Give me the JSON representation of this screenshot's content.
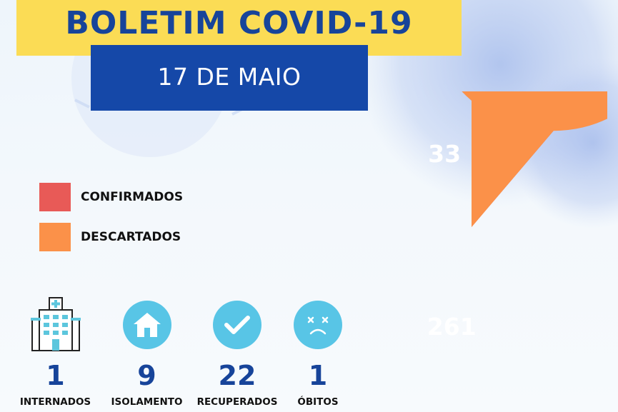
{
  "header": {
    "title": "BOLETIM COVID-19",
    "date": "17 DE MAIO"
  },
  "colors": {
    "title_band": "#fbdc55",
    "title_text": "#17449a",
    "date_band": "#1548a8",
    "confirmados": "#e85a57",
    "descartados": "#fb9149",
    "icon_circle": "#58c5e6"
  },
  "chart_data": {
    "type": "pie",
    "slices": [
      {
        "label": "CONFIRMADOS",
        "value": 33,
        "color": "#e85a57"
      },
      {
        "label": "DESCARTADOS",
        "value": 261,
        "color": "#fb9149"
      }
    ],
    "legend_position": "left"
  },
  "stats": [
    {
      "value": "1",
      "label": "INTERNADOS",
      "icon": "hospital-icon"
    },
    {
      "value": "9",
      "label": "ISOLAMENTO",
      "icon": "house-icon"
    },
    {
      "value": "22",
      "label": "RECUPERADOS",
      "icon": "checkmark-icon"
    },
    {
      "value": "1",
      "label": "ÓBITOS",
      "icon": "sad-face-icon"
    }
  ]
}
